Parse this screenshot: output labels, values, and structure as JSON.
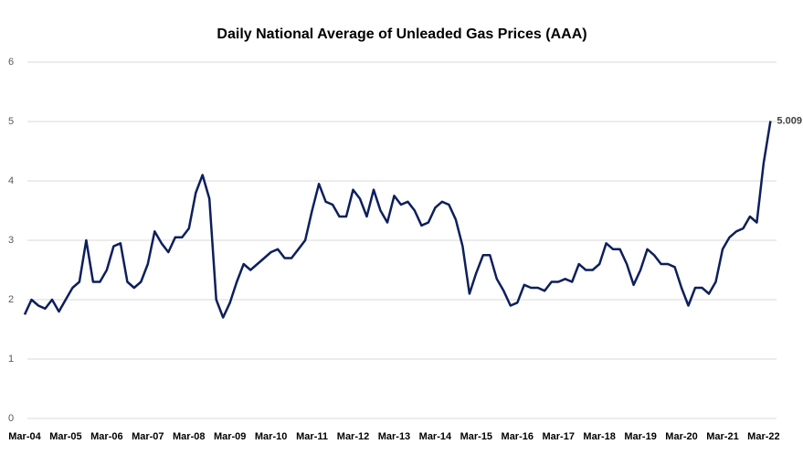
{
  "chart_data": {
    "type": "line",
    "title": "Daily National Average of Unleaded Gas Prices (AAA)",
    "categories": [
      "Mar-04",
      null,
      null,
      null,
      null,
      null,
      "Mar-05",
      null,
      null,
      null,
      null,
      null,
      "Mar-06",
      null,
      null,
      null,
      null,
      null,
      "Mar-07",
      null,
      null,
      null,
      null,
      null,
      "Mar-08",
      null,
      null,
      null,
      null,
      null,
      "Mar-09",
      null,
      null,
      null,
      null,
      null,
      "Mar-10",
      null,
      null,
      null,
      null,
      null,
      "Mar-11",
      null,
      null,
      null,
      null,
      null,
      "Mar-12",
      null,
      null,
      null,
      null,
      null,
      "Mar-13",
      null,
      null,
      null,
      null,
      null,
      "Mar-14",
      null,
      null,
      null,
      null,
      null,
      "Mar-15",
      null,
      null,
      null,
      null,
      null,
      "Mar-16",
      null,
      null,
      null,
      null,
      null,
      "Mar-17",
      null,
      null,
      null,
      null,
      null,
      "Mar-18",
      null,
      null,
      null,
      null,
      null,
      "Mar-19",
      null,
      null,
      null,
      null,
      null,
      "Mar-20",
      null,
      null,
      null,
      null,
      null,
      "Mar-21",
      null,
      null,
      null,
      null,
      null,
      "Mar-22",
      null
    ],
    "values": [
      1.75,
      2.0,
      1.9,
      1.85,
      2.0,
      1.8,
      2.0,
      2.2,
      2.3,
      3.0,
      2.3,
      2.3,
      2.5,
      2.9,
      2.95,
      2.3,
      2.2,
      2.3,
      2.6,
      3.15,
      2.95,
      2.8,
      3.05,
      3.05,
      3.2,
      3.8,
      4.1,
      3.7,
      2.0,
      1.7,
      1.95,
      2.3,
      2.6,
      2.5,
      2.6,
      2.7,
      2.8,
      2.85,
      2.7,
      2.7,
      2.85,
      3.0,
      3.5,
      3.95,
      3.65,
      3.6,
      3.4,
      3.4,
      3.85,
      3.7,
      3.4,
      3.85,
      3.5,
      3.3,
      3.75,
      3.6,
      3.65,
      3.5,
      3.25,
      3.3,
      3.55,
      3.65,
      3.6,
      3.35,
      2.9,
      2.1,
      2.45,
      2.75,
      2.75,
      2.35,
      2.15,
      1.9,
      1.95,
      2.25,
      2.2,
      2.2,
      2.15,
      2.3,
      2.3,
      2.35,
      2.3,
      2.6,
      2.5,
      2.5,
      2.6,
      2.95,
      2.85,
      2.85,
      2.6,
      2.25,
      2.5,
      2.85,
      2.75,
      2.6,
      2.6,
      2.55,
      2.2,
      1.9,
      2.2,
      2.2,
      2.1,
      2.3,
      2.85,
      3.05,
      3.15,
      3.2,
      3.4,
      3.3,
      4.3,
      5.009
    ],
    "color": "#0d1f5c",
    "ylim": [
      0,
      6
    ],
    "yticks": [
      0,
      1,
      2,
      3,
      4,
      5,
      6
    ],
    "grid": true
  }
}
